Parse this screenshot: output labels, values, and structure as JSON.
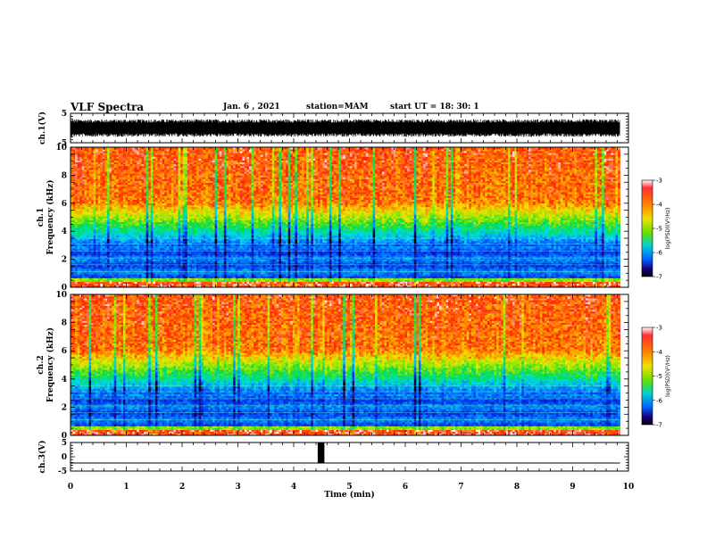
{
  "header": {
    "title": "VLF Spectra",
    "date": "Jan. 6 , 2021",
    "station": "station=MAM",
    "start": "start  UT =   18: 30: 1"
  },
  "chart_data": {
    "type": "heatmap",
    "xlabel": "Time  (min)",
    "xlim": [
      0,
      10
    ],
    "x_ticks": [
      "0",
      "1",
      "2",
      "3",
      "4",
      "5",
      "6",
      "7",
      "8",
      "9",
      "10"
    ],
    "panels": [
      {
        "id": "ch1-waveform",
        "type": "line",
        "ylabel": "ch.1(V)",
        "ylim": [
          -5,
          5
        ],
        "y_ticks": [
          "5",
          "-5"
        ],
        "description_values": {
          "typical_amplitude": [
            -3,
            3
          ]
        }
      },
      {
        "id": "ch1-spectrogram",
        "type": "heatmap",
        "ylabel_top": "ch.1",
        "ylabel": "Frequency  (kHz)",
        "ylim": [
          0,
          10
        ],
        "y_ticks": [
          "0",
          "2",
          "4",
          "6",
          "8",
          "10"
        ],
        "colorbar": {
          "label": "log(PSD)(V²/Hz)",
          "range": [
            -7,
            -3
          ],
          "ticks": [
            "-3",
            "-4",
            "-5",
            "-6",
            "-7"
          ]
        }
      },
      {
        "id": "ch2-spectrogram",
        "type": "heatmap",
        "ylabel_top": "ch.2",
        "ylabel": "Frequency  (kHz)",
        "ylim": [
          0,
          10
        ],
        "y_ticks": [
          "0",
          "2",
          "4",
          "6",
          "8",
          "10"
        ],
        "colorbar": {
          "label": "log(PSD)(V²/Hz)",
          "range": [
            -7,
            -3
          ],
          "ticks": [
            "-3",
            "-4",
            "-5",
            "-6",
            "-7"
          ]
        }
      },
      {
        "id": "ch3-waveform",
        "type": "line",
        "ylabel": "ch.3(V)",
        "ylim": [
          -5,
          5
        ],
        "y_ticks": [
          "5",
          "0",
          "-5"
        ],
        "baseline_value": -2.2,
        "pulse": {
          "x_start": 4.43,
          "x_end": 4.55,
          "y_low": -2.2,
          "y_high": 5
        }
      }
    ]
  }
}
